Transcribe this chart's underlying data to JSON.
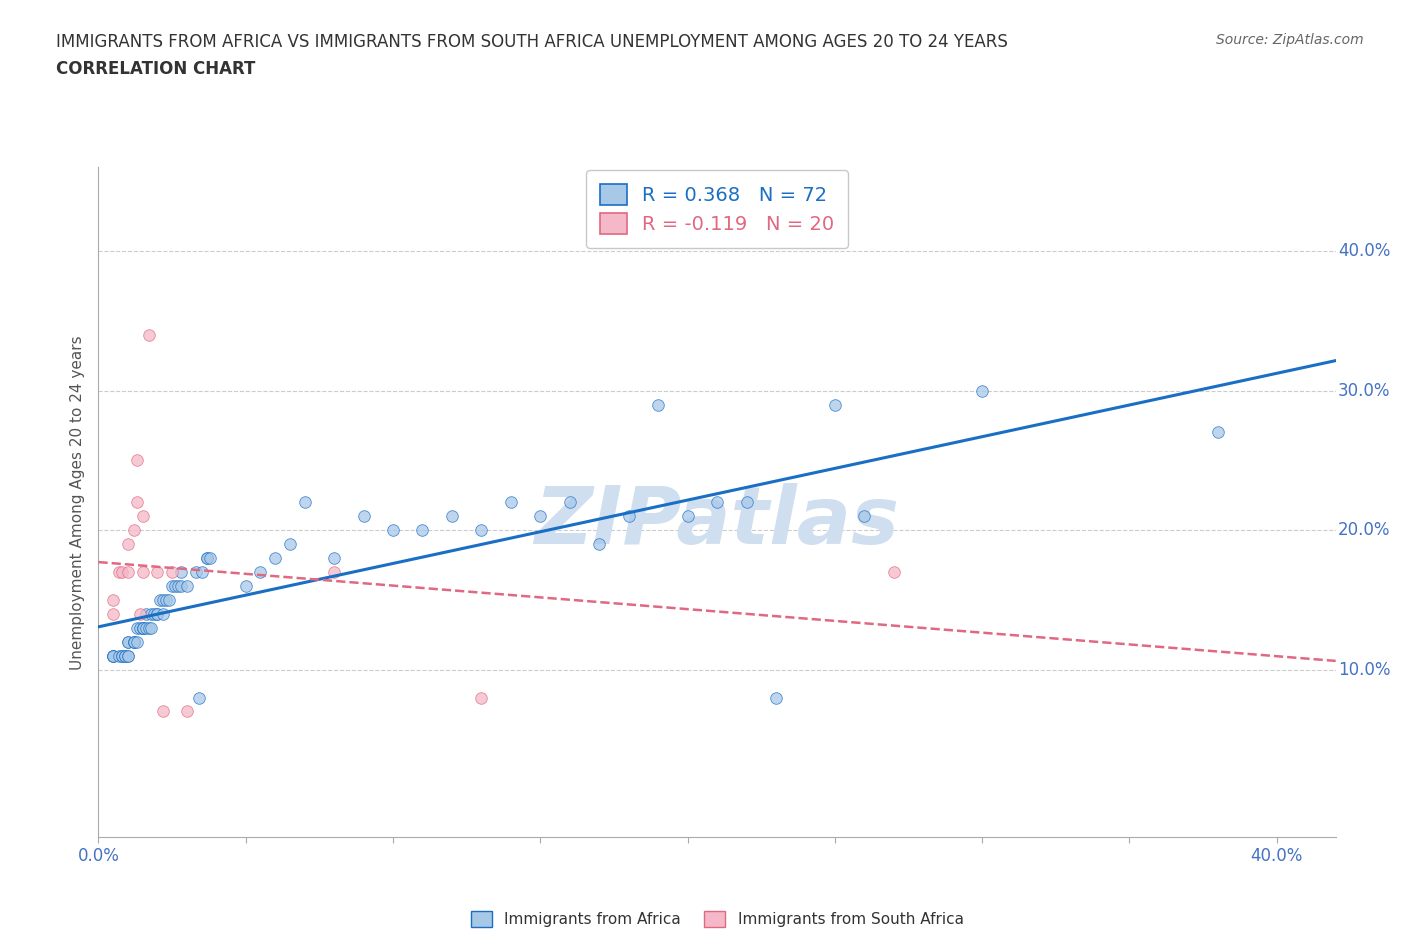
{
  "title_line1": "IMMIGRANTS FROM AFRICA VS IMMIGRANTS FROM SOUTH AFRICA UNEMPLOYMENT AMONG AGES 20 TO 24 YEARS",
  "title_line2": "CORRELATION CHART",
  "source_text": "Source: ZipAtlas.com",
  "ylabel": "Unemployment Among Ages 20 to 24 years",
  "xlim": [
    0.0,
    0.42
  ],
  "ylim": [
    -0.02,
    0.46
  ],
  "xtick_values": [
    0.0,
    0.05,
    0.1,
    0.15,
    0.2,
    0.25,
    0.3,
    0.35,
    0.4
  ],
  "xtick_edge_labels": {
    "0": "0.0%",
    "0.40": "40.0%"
  },
  "ytick_values": [
    0.1,
    0.2,
    0.3,
    0.4
  ],
  "ytick_labels": [
    "10.0%",
    "20.0%",
    "30.0%",
    "40.0%"
  ],
  "R_africa": 0.368,
  "N_africa": 72,
  "R_south_africa": -0.119,
  "N_south_africa": 20,
  "color_africa": "#a8c8e8",
  "color_south_africa": "#f4b8c8",
  "trendline_africa_color": "#1a6fc4",
  "trendline_south_africa_color": "#e06880",
  "ytick_color": "#4472c4",
  "xtick_edge_color": "#4472c4",
  "watermark_text": "ZIPatlas",
  "watermark_color": "#d0dff0",
  "legend_label_africa": "Immigrants from Africa",
  "legend_label_south_africa": "Immigrants from South Africa",
  "africa_x": [
    0.005,
    0.005,
    0.005,
    0.005,
    0.007,
    0.008,
    0.008,
    0.009,
    0.009,
    0.01,
    0.01,
    0.01,
    0.01,
    0.012,
    0.012,
    0.012,
    0.013,
    0.013,
    0.014,
    0.015,
    0.015,
    0.015,
    0.016,
    0.016,
    0.017,
    0.018,
    0.018,
    0.019,
    0.02,
    0.02,
    0.021,
    0.022,
    0.022,
    0.023,
    0.024,
    0.025,
    0.026,
    0.027,
    0.028,
    0.028,
    0.03,
    0.033,
    0.034,
    0.035,
    0.037,
    0.037,
    0.038,
    0.05,
    0.055,
    0.06,
    0.065,
    0.07,
    0.08,
    0.09,
    0.1,
    0.11,
    0.12,
    0.13,
    0.14,
    0.15,
    0.16,
    0.17,
    0.18,
    0.19,
    0.2,
    0.21,
    0.22,
    0.23,
    0.25,
    0.26,
    0.3,
    0.38
  ],
  "africa_y": [
    0.11,
    0.11,
    0.11,
    0.11,
    0.11,
    0.11,
    0.11,
    0.11,
    0.11,
    0.11,
    0.11,
    0.12,
    0.12,
    0.12,
    0.12,
    0.12,
    0.12,
    0.13,
    0.13,
    0.13,
    0.13,
    0.13,
    0.13,
    0.14,
    0.13,
    0.13,
    0.14,
    0.14,
    0.14,
    0.14,
    0.15,
    0.14,
    0.15,
    0.15,
    0.15,
    0.16,
    0.16,
    0.16,
    0.16,
    0.17,
    0.16,
    0.17,
    0.08,
    0.17,
    0.18,
    0.18,
    0.18,
    0.16,
    0.17,
    0.18,
    0.19,
    0.22,
    0.18,
    0.21,
    0.2,
    0.2,
    0.21,
    0.2,
    0.22,
    0.21,
    0.22,
    0.19,
    0.21,
    0.29,
    0.21,
    0.22,
    0.22,
    0.08,
    0.29,
    0.21,
    0.3,
    0.27
  ],
  "south_africa_x": [
    0.005,
    0.005,
    0.007,
    0.008,
    0.01,
    0.01,
    0.012,
    0.013,
    0.013,
    0.014,
    0.015,
    0.015,
    0.017,
    0.02,
    0.022,
    0.025,
    0.03,
    0.08,
    0.13,
    0.27
  ],
  "south_africa_y": [
    0.14,
    0.15,
    0.17,
    0.17,
    0.17,
    0.19,
    0.2,
    0.22,
    0.25,
    0.14,
    0.17,
    0.21,
    0.34,
    0.17,
    0.07,
    0.17,
    0.07,
    0.17,
    0.08,
    0.17
  ]
}
